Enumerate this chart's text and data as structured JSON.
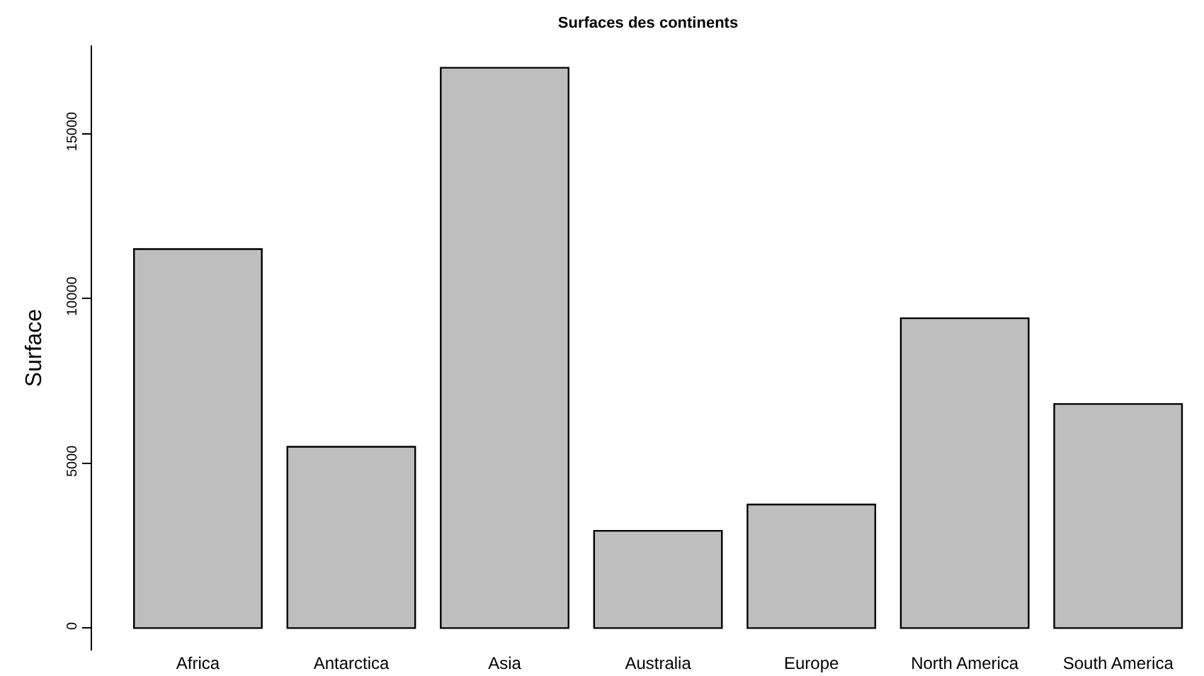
{
  "chart_data": {
    "type": "bar",
    "title": "Surfaces des continents",
    "ylabel": "Surface",
    "categories": [
      "Africa",
      "Antarctica",
      "Asia",
      "Australia",
      "Europe",
      "North America",
      "South America"
    ],
    "values": [
      11500,
      5500,
      17000,
      2950,
      3750,
      9400,
      6800
    ],
    "color": "#bebebe",
    "ylim": [
      -680,
      17680
    ],
    "yticks": [
      0,
      5000,
      10000,
      15000
    ],
    "grid": false
  }
}
